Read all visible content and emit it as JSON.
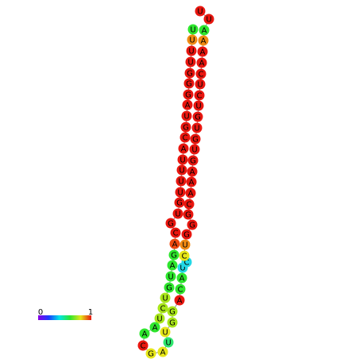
{
  "nodes": [
    {
      "label": "U",
      "color": "#2ee62e"
    },
    {
      "label": "U",
      "color": "#f08a12"
    },
    {
      "label": "U",
      "color": "#e8160f"
    },
    {
      "label": "U",
      "color": "#e8160f"
    },
    {
      "label": "G",
      "color": "#e8160f"
    },
    {
      "label": "G",
      "color": "#e8160f"
    },
    {
      "label": "G",
      "color": "#e8160f"
    },
    {
      "label": "A",
      "color": "#e8160f"
    },
    {
      "label": "U",
      "color": "#e8160f"
    },
    {
      "label": "G",
      "color": "#e8160f"
    },
    {
      "label": "C",
      "color": "#e8160f"
    },
    {
      "label": "A",
      "color": "#e8160f"
    },
    {
      "label": "U",
      "color": "#e8160f"
    },
    {
      "label": "U",
      "color": "#e8160f"
    },
    {
      "label": "U",
      "color": "#e8160f"
    },
    {
      "label": "U",
      "color": "#e8160f"
    },
    {
      "label": "G",
      "color": "#e8160f"
    },
    {
      "label": "U",
      "color": "#e8160f"
    },
    {
      "label": "G",
      "color": "#e8160f"
    },
    {
      "label": "C",
      "color": "#e8160f"
    },
    {
      "label": "A",
      "color": "#ee4a10"
    },
    {
      "label": "G",
      "color": "#2ee62e"
    },
    {
      "label": "A",
      "color": "#2ee62e"
    },
    {
      "label": "U",
      "color": "#2ee62e"
    },
    {
      "label": "G",
      "color": "#2ee62e"
    },
    {
      "label": "U",
      "color": "#a8e61a"
    },
    {
      "label": "C",
      "color": "#a8e61a"
    },
    {
      "label": "U",
      "color": "#a8e61a"
    },
    {
      "label": "A",
      "color": "#2ee62e"
    },
    {
      "label": "A",
      "color": "#2ee62e"
    },
    {
      "label": "C",
      "color": "#e8160f"
    },
    {
      "label": "G",
      "color": "#e6e61a"
    },
    {
      "label": "A",
      "color": "#e6e61a"
    },
    {
      "label": "U",
      "color": "#2ee66e"
    },
    {
      "label": "U",
      "color": "#e6e61a"
    },
    {
      "label": "G",
      "color": "#a8e61a"
    },
    {
      "label": "G",
      "color": "#a8e61a"
    },
    {
      "label": "A",
      "color": "#e8160f"
    },
    {
      "label": "C",
      "color": "#2ee62e"
    },
    {
      "label": "A",
      "color": "#2ee62e"
    },
    {
      "label": "U",
      "color": "#22d8e6"
    },
    {
      "label": "C",
      "color": "#22d8e6"
    },
    {
      "label": "C",
      "color": "#e6e61a"
    },
    {
      "label": "U",
      "color": "#f08a12"
    },
    {
      "label": "G",
      "color": "#e8160f"
    },
    {
      "label": "G",
      "color": "#e8160f"
    },
    {
      "label": "G",
      "color": "#e8160f"
    },
    {
      "label": "C",
      "color": "#e8160f"
    },
    {
      "label": "A",
      "color": "#e8160f"
    },
    {
      "label": "A",
      "color": "#e8160f"
    },
    {
      "label": "A",
      "color": "#e8160f"
    },
    {
      "label": "G",
      "color": "#e8160f"
    },
    {
      "label": "U",
      "color": "#e8160f"
    },
    {
      "label": "G",
      "color": "#e8160f"
    },
    {
      "label": "U",
      "color": "#e8160f"
    },
    {
      "label": "G",
      "color": "#e8160f"
    },
    {
      "label": "U",
      "color": "#e8160f"
    },
    {
      "label": "C",
      "color": "#e8160f"
    },
    {
      "label": "U",
      "color": "#e8160f"
    },
    {
      "label": "C",
      "color": "#e8160f"
    },
    {
      "label": "A",
      "color": "#e8160f"
    },
    {
      "label": "A",
      "color": "#e8160f"
    },
    {
      "label": "A",
      "color": "#f08a12"
    },
    {
      "label": "A",
      "color": "#2ee62e"
    },
    {
      "label": "U",
      "color": "#e8160f"
    },
    {
      "label": "U",
      "color": "#e8160f"
    }
  ],
  "colorbar": {
    "min_label": "0",
    "max_label": "1"
  }
}
